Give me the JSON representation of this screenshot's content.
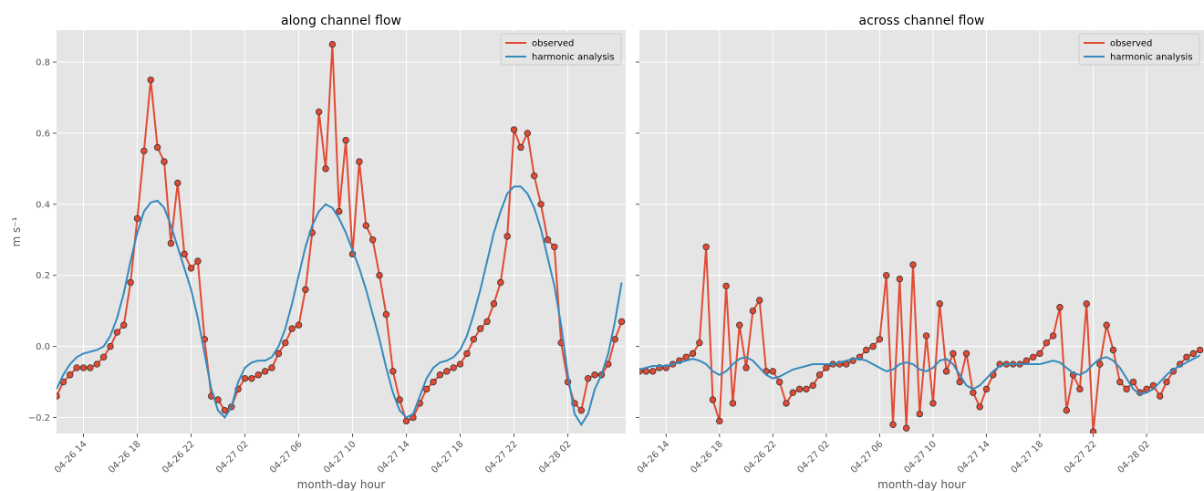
{
  "chart_data": [
    {
      "type": "line",
      "title": "along channel flow",
      "xlabel": "month-day hour",
      "ylabel": "m s⁻¹",
      "x": [
        12,
        12.5,
        13,
        13.5,
        14,
        14.5,
        15,
        15.5,
        16,
        16.5,
        17,
        17.5,
        18,
        18.5,
        19,
        19.5,
        20,
        20.5,
        21,
        21.5,
        22,
        22.5,
        23,
        23.5,
        24,
        24.5,
        25,
        25.5,
        26,
        26.5,
        27,
        27.5,
        28,
        28.5,
        29,
        29.5,
        30,
        30.5,
        31,
        31.5,
        32,
        32.5,
        33,
        33.5,
        34,
        34.5,
        35,
        35.5,
        36,
        36.5,
        37,
        37.5,
        38,
        38.5,
        39,
        39.5,
        40,
        40.5,
        41,
        41.5,
        42,
        42.5,
        43,
        43.5,
        44,
        44.5,
        45,
        45.5,
        46,
        46.5,
        47,
        47.5,
        48,
        48.5,
        49,
        49.5,
        50,
        50.5,
        51,
        51.5,
        52,
        52.5,
        53,
        53.5,
        54
      ],
      "series": [
        {
          "name": "observed",
          "color": "#E24A33",
          "markers": true,
          "values": [
            -0.14,
            -0.1,
            -0.08,
            -0.06,
            -0.06,
            -0.06,
            -0.05,
            -0.03,
            0.0,
            0.04,
            0.06,
            0.18,
            0.36,
            0.55,
            0.75,
            0.56,
            0.52,
            0.29,
            0.46,
            0.26,
            0.22,
            0.24,
            0.02,
            -0.14,
            -0.15,
            -0.18,
            -0.17,
            -0.12,
            -0.09,
            -0.09,
            -0.08,
            -0.07,
            -0.06,
            -0.02,
            0.01,
            0.05,
            0.06,
            0.16,
            0.32,
            0.66,
            0.5,
            0.85,
            0.38,
            0.58,
            0.26,
            0.52,
            0.34,
            0.3,
            0.2,
            0.09,
            -0.07,
            -0.15,
            -0.21,
            -0.2,
            -0.16,
            -0.12,
            -0.1,
            -0.08,
            -0.07,
            -0.06,
            -0.05,
            -0.02,
            0.02,
            0.05,
            0.07,
            0.12,
            0.18,
            0.31,
            0.61,
            0.56,
            0.6,
            0.48,
            0.4,
            0.3,
            0.28,
            0.01,
            -0.1,
            -0.16,
            -0.18,
            -0.09,
            -0.08,
            -0.08,
            -0.05,
            0.02,
            0.07
          ]
        },
        {
          "name": "harmonic analysis",
          "color": "#348ABD",
          "markers": false,
          "values": [
            -0.12,
            -0.08,
            -0.05,
            -0.03,
            -0.02,
            -0.015,
            -0.01,
            0.0,
            0.03,
            0.08,
            0.15,
            0.24,
            0.32,
            0.38,
            0.405,
            0.41,
            0.39,
            0.34,
            0.28,
            0.22,
            0.16,
            0.08,
            -0.02,
            -0.12,
            -0.18,
            -0.2,
            -0.17,
            -0.1,
            -0.06,
            -0.045,
            -0.04,
            -0.04,
            -0.03,
            0.0,
            0.05,
            0.12,
            0.2,
            0.28,
            0.34,
            0.38,
            0.4,
            0.39,
            0.36,
            0.32,
            0.27,
            0.22,
            0.16,
            0.09,
            0.02,
            -0.06,
            -0.13,
            -0.18,
            -0.2,
            -0.19,
            -0.14,
            -0.09,
            -0.06,
            -0.045,
            -0.04,
            -0.03,
            -0.01,
            0.03,
            0.09,
            0.16,
            0.24,
            0.32,
            0.38,
            0.43,
            0.45,
            0.45,
            0.43,
            0.39,
            0.33,
            0.25,
            0.17,
            0.06,
            -0.08,
            -0.19,
            -0.22,
            -0.19,
            -0.12,
            -0.08,
            -0.02,
            0.07,
            0.18
          ]
        }
      ],
      "xlim": [
        12,
        54.3
      ],
      "ylim": [
        -0.245,
        0.89
      ],
      "xticks": [
        {
          "value": 14,
          "label": "04-26 14"
        },
        {
          "value": 18,
          "label": "04-26 18"
        },
        {
          "value": 22,
          "label": "04-26 22"
        },
        {
          "value": 26,
          "label": "04-27 02"
        },
        {
          "value": 30,
          "label": "04-27 06"
        },
        {
          "value": 34,
          "label": "04-27 10"
        },
        {
          "value": 38,
          "label": "04-27 14"
        },
        {
          "value": 42,
          "label": "04-27 18"
        },
        {
          "value": 46,
          "label": "04-27 22"
        },
        {
          "value": 50,
          "label": "04-28 02"
        }
      ],
      "yticks": [
        {
          "value": -0.2,
          "label": "−0.2"
        },
        {
          "value": 0,
          "label": "0.0"
        },
        0.2,
        0.4,
        0.6,
        0.8
      ],
      "grid": true,
      "legend": "upper right"
    },
    {
      "type": "line",
      "title": "across channel flow",
      "xlabel": "month-day hour",
      "sharey": true,
      "x": [
        12,
        12.5,
        13,
        13.5,
        14,
        14.5,
        15,
        15.5,
        16,
        16.5,
        17,
        17.5,
        18,
        18.5,
        19,
        19.5,
        20,
        20.5,
        21,
        21.5,
        22,
        22.5,
        23,
        23.5,
        24,
        24.5,
        25,
        25.5,
        26,
        26.5,
        27,
        27.5,
        28,
        28.5,
        29,
        29.5,
        30,
        30.5,
        31,
        31.5,
        32,
        32.5,
        33,
        33.5,
        34,
        34.5,
        35,
        35.5,
        36,
        36.5,
        37,
        37.5,
        38,
        38.5,
        39,
        39.5,
        40,
        40.5,
        41,
        41.5,
        42,
        42.5,
        43,
        43.5,
        44,
        44.5,
        45,
        45.5,
        46,
        46.5,
        47,
        47.5,
        48,
        48.5,
        49,
        49.5,
        50,
        50.5,
        51,
        51.5,
        52,
        52.5,
        53,
        53.5,
        54
      ],
      "series": [
        {
          "name": "observed",
          "color": "#E24A33",
          "markers": true,
          "values": [
            -0.07,
            -0.07,
            -0.07,
            -0.06,
            -0.06,
            -0.05,
            -0.04,
            -0.03,
            -0.02,
            0.01,
            0.28,
            -0.15,
            -0.21,
            0.17,
            -0.16,
            0.06,
            -0.06,
            0.1,
            0.13,
            -0.07,
            -0.07,
            -0.1,
            -0.16,
            -0.13,
            -0.12,
            -0.12,
            -0.11,
            -0.08,
            -0.06,
            -0.05,
            -0.05,
            -0.05,
            -0.04,
            -0.03,
            -0.01,
            0.0,
            0.02,
            0.2,
            -0.22,
            0.19,
            -0.23,
            0.23,
            -0.19,
            0.03,
            -0.16,
            0.12,
            -0.07,
            -0.02,
            -0.1,
            -0.02,
            -0.13,
            -0.17,
            -0.12,
            -0.08,
            -0.05,
            -0.05,
            -0.05,
            -0.05,
            -0.04,
            -0.03,
            -0.02,
            0.01,
            0.03,
            0.11,
            -0.18,
            -0.08,
            -0.12,
            0.12,
            -0.24,
            -0.05,
            0.06,
            -0.01,
            -0.1,
            -0.12,
            -0.1,
            -0.13,
            -0.12,
            -0.11,
            -0.14,
            -0.1,
            -0.07,
            -0.05,
            -0.03,
            -0.02,
            -0.01
          ]
        },
        {
          "name": "harmonic analysis",
          "color": "#348ABD",
          "markers": false,
          "values": [
            -0.065,
            -0.06,
            -0.055,
            -0.055,
            -0.055,
            -0.05,
            -0.045,
            -0.04,
            -0.035,
            -0.04,
            -0.05,
            -0.07,
            -0.08,
            -0.07,
            -0.05,
            -0.035,
            -0.03,
            -0.04,
            -0.06,
            -0.08,
            -0.09,
            -0.085,
            -0.075,
            -0.065,
            -0.06,
            -0.055,
            -0.05,
            -0.05,
            -0.05,
            -0.05,
            -0.045,
            -0.04,
            -0.035,
            -0.035,
            -0.04,
            -0.05,
            -0.06,
            -0.07,
            -0.065,
            -0.05,
            -0.045,
            -0.05,
            -0.065,
            -0.07,
            -0.06,
            -0.04,
            -0.035,
            -0.05,
            -0.08,
            -0.11,
            -0.12,
            -0.11,
            -0.09,
            -0.07,
            -0.055,
            -0.05,
            -0.05,
            -0.05,
            -0.05,
            -0.05,
            -0.05,
            -0.045,
            -0.04,
            -0.045,
            -0.06,
            -0.075,
            -0.08,
            -0.07,
            -0.05,
            -0.035,
            -0.03,
            -0.04,
            -0.06,
            -0.09,
            -0.12,
            -0.135,
            -0.13,
            -0.12,
            -0.1,
            -0.08,
            -0.065,
            -0.055,
            -0.045,
            -0.035,
            -0.025
          ]
        }
      ],
      "xlim": [
        12,
        54.3
      ],
      "ylim": [
        -0.245,
        0.89
      ],
      "xticks": [
        {
          "value": 14,
          "label": "04-26 14"
        },
        {
          "value": 18,
          "label": "04-26 18"
        },
        {
          "value": 22,
          "label": "04-26 22"
        },
        {
          "value": 26,
          "label": "04-27 02"
        },
        {
          "value": 30,
          "label": "04-27 06"
        },
        {
          "value": 34,
          "label": "04-27 10"
        },
        {
          "value": 38,
          "label": "04-27 14"
        },
        {
          "value": 42,
          "label": "04-27 18"
        },
        {
          "value": 46,
          "label": "04-27 22"
        },
        {
          "value": 50,
          "label": "04-28 02"
        }
      ],
      "yticks": [
        {
          "value": -0.2,
          "label": "−0.2"
        },
        {
          "value": 0,
          "label": "0.0"
        },
        0.2,
        0.4,
        0.6,
        0.8
      ],
      "grid": true,
      "legend": "upper right"
    }
  ]
}
